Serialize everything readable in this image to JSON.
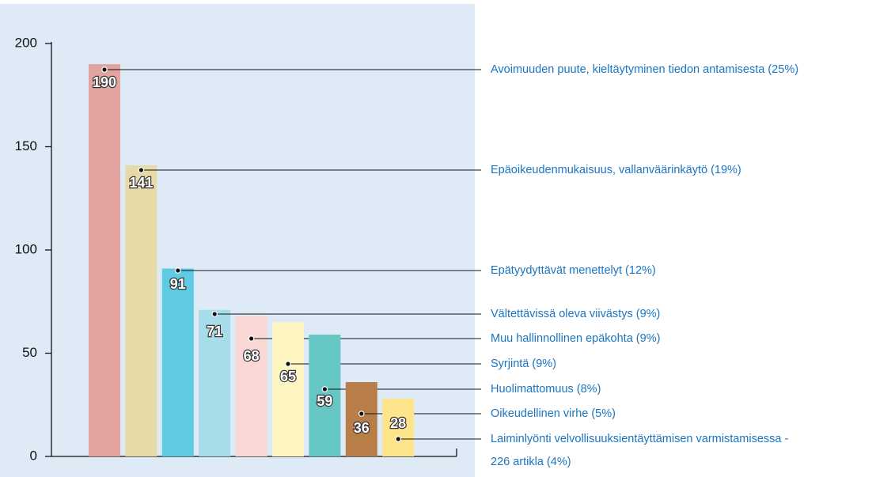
{
  "chart_data": {
    "type": "bar",
    "categories": [
      [
        "Avoimuuden puute, kieltäytyminen tiedon antamisesta (25%)"
      ],
      [
        "Epäoikeudenmukaisuus, vallanväärinkäytö (19%)"
      ],
      [
        "Epätyydyttävät menettelyt (12%)"
      ],
      [
        "Vältettävissä oleva viivästys (9%)"
      ],
      [
        "Muu hallinnollinen epäkohta (9%)"
      ],
      [
        "Syrjintä (9%)"
      ],
      [
        "Huolimattomuus (8%)"
      ],
      [
        "Oikeudellinen virhe (5%)"
      ],
      [
        "Laiminlyönti velvollisuuksientäyttämisen varmistamisessa -",
        "226 artikla (4%)"
      ]
    ],
    "values": [
      190,
      141,
      91,
      71,
      68,
      65,
      59,
      36,
      28
    ],
    "colors": [
      "#e2a4a1",
      "#e8d9a9",
      "#5ecbe3",
      "#a7dde9",
      "#f8d7d4",
      "#fdf6c2",
      "#67c7c4",
      "#b97d47",
      "#fee58c"
    ],
    "ylim": [
      0,
      200
    ],
    "yticks": [
      0,
      50,
      100,
      150,
      200
    ]
  }
}
